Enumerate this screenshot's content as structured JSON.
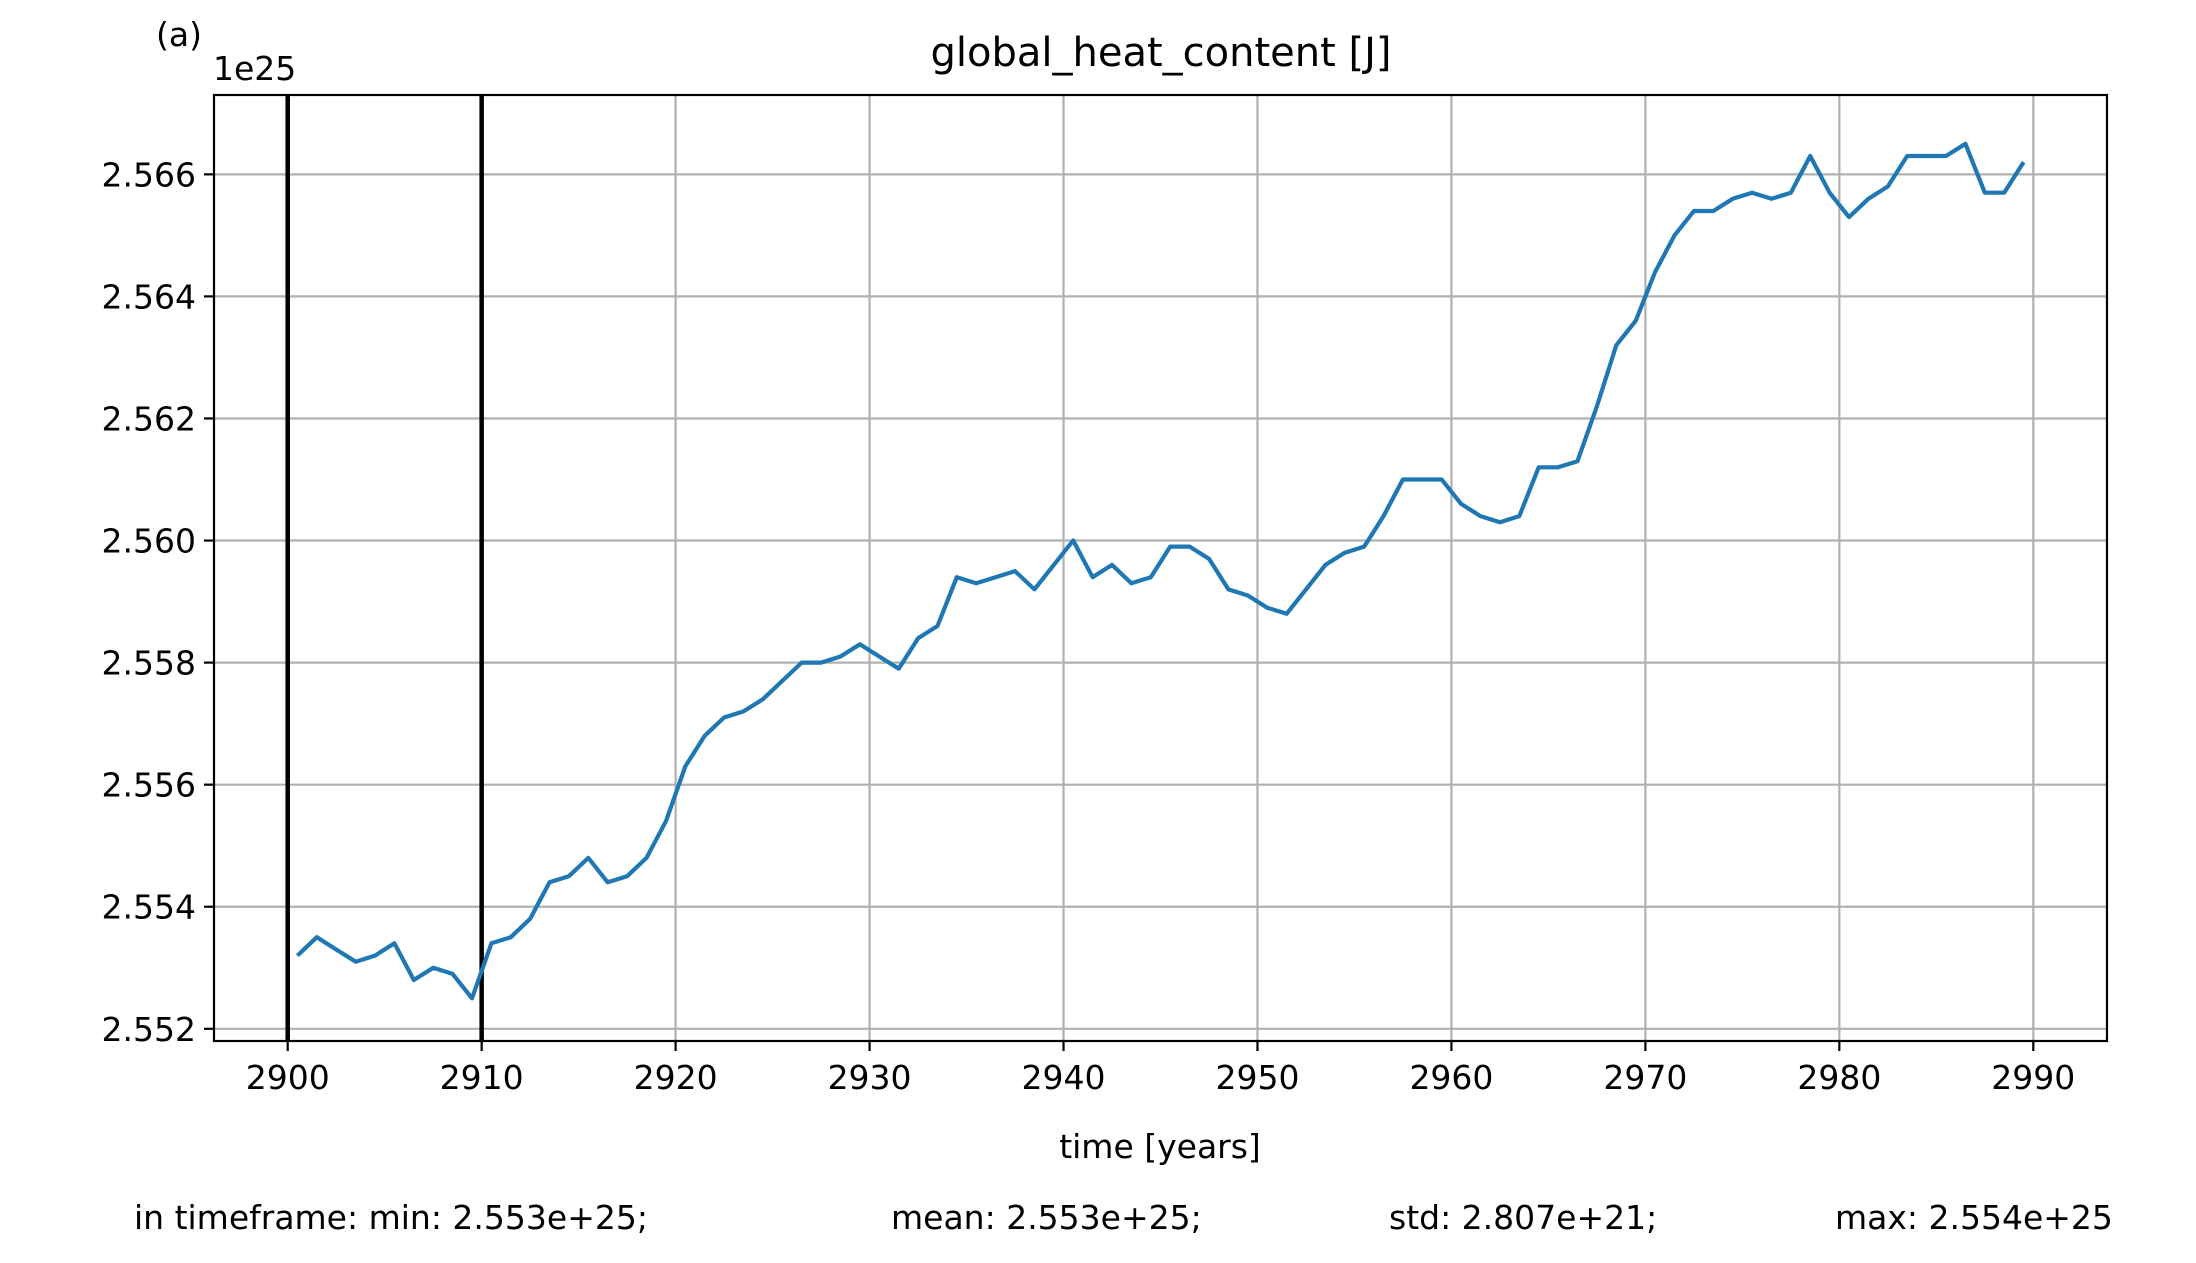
{
  "panel_label": "(a)",
  "chart_data": {
    "type": "line",
    "title": "global_heat_content [J]",
    "xlabel": "time [years]",
    "ylabel": "",
    "y_offset_label": "1e25",
    "xlim": [
      2896.2,
      2993.8
    ],
    "ylim": [
      2.5518,
      2.5673
    ],
    "x_ticks": [
      2900,
      2910,
      2920,
      2930,
      2940,
      2950,
      2960,
      2970,
      2980,
      2990
    ],
    "x_tick_labels": [
      "2900",
      "2910",
      "2920",
      "2930",
      "2940",
      "2950",
      "2960",
      "2970",
      "2980",
      "2990"
    ],
    "y_ticks": [
      2.552,
      2.554,
      2.556,
      2.558,
      2.56,
      2.562,
      2.564,
      2.566
    ],
    "y_tick_labels": [
      "2.552",
      "2.554",
      "2.556",
      "2.558",
      "2.560",
      "2.562",
      "2.564",
      "2.566"
    ],
    "grid": true,
    "vertical_markers": [
      2900,
      2910
    ],
    "series": [
      {
        "color": "#1f77b4",
        "x": [
          2900.5,
          2901.5,
          2902.5,
          2903.5,
          2904.5,
          2905.5,
          2906.5,
          2907.5,
          2908.5,
          2909.5,
          2910.5,
          2911.5,
          2912.5,
          2913.5,
          2914.5,
          2915.5,
          2916.5,
          2917.5,
          2918.5,
          2919.5,
          2920.5,
          2921.5,
          2922.5,
          2923.5,
          2924.5,
          2925.5,
          2926.5,
          2927.5,
          2928.5,
          2929.5,
          2930.5,
          2931.5,
          2932.5,
          2933.5,
          2934.5,
          2935.5,
          2936.5,
          2937.5,
          2938.5,
          2939.5,
          2940.5,
          2941.5,
          2942.5,
          2943.5,
          2944.5,
          2945.5,
          2946.5,
          2947.5,
          2948.5,
          2949.5,
          2950.5,
          2951.5,
          2952.5,
          2953.5,
          2954.5,
          2955.5,
          2956.5,
          2957.5,
          2958.5,
          2959.5,
          2960.5,
          2961.5,
          2962.5,
          2963.5,
          2964.5,
          2965.5,
          2966.5,
          2967.5,
          2968.5,
          2969.5,
          2970.5,
          2971.5,
          2972.5,
          2973.5,
          2974.5,
          2975.5,
          2976.5,
          2977.5,
          2978.5,
          2979.5,
          2980.5,
          2981.5,
          2982.5,
          2983.5,
          2984.5,
          2985.5,
          2986.5,
          2987.5,
          2988.5,
          2989.5
        ],
        "y": [
          2.5532,
          2.5535,
          2.5533,
          2.5531,
          2.5532,
          2.5534,
          2.5528,
          2.553,
          2.5529,
          2.5525,
          2.5534,
          2.5535,
          2.5538,
          2.5544,
          2.5545,
          2.5548,
          2.5544,
          2.5545,
          2.5548,
          2.5554,
          2.5563,
          2.5568,
          2.5571,
          2.5572,
          2.5574,
          2.5577,
          2.558,
          2.558,
          2.5581,
          2.5583,
          2.5581,
          2.5579,
          2.5584,
          2.5586,
          2.5594,
          2.5593,
          2.5594,
          2.5595,
          2.5592,
          2.5596,
          2.56,
          2.5594,
          2.5596,
          2.5593,
          2.5594,
          2.5599,
          2.5599,
          2.5597,
          2.5592,
          2.5591,
          2.5589,
          2.5588,
          2.5592,
          2.5596,
          2.5598,
          2.5599,
          2.5604,
          2.561,
          2.561,
          2.561,
          2.5606,
          2.5604,
          2.5603,
          2.5604,
          2.5612,
          2.5612,
          2.5613,
          2.5622,
          2.5632,
          2.5636,
          2.5644,
          2.565,
          2.5654,
          2.5654,
          2.5656,
          2.5657,
          2.5656,
          2.5657,
          2.5663,
          2.5657,
          2.5653,
          2.5656,
          2.5658,
          2.5663,
          2.5663,
          2.5663,
          2.5665,
          2.5657,
          2.5657,
          2.5662
        ]
      }
    ]
  },
  "stats": {
    "prefix": "in timeframe: min: 2.553e+25;",
    "mean": "mean: 2.553e+25;",
    "std": "std: 2.807e+21;",
    "max": "max: 2.554e+25"
  }
}
